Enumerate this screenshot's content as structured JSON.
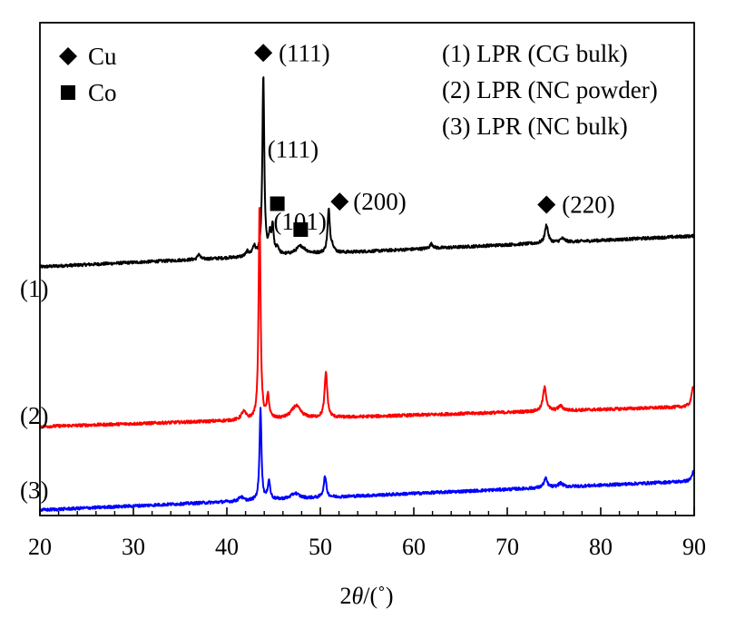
{
  "chart_data": {
    "type": "line",
    "xlabel_parts": [
      "2",
      "θ",
      "/(˚)"
    ],
    "x_ticks": [
      "20",
      "30",
      "40",
      "50",
      "60",
      "70",
      "80",
      "90"
    ],
    "xlim": [
      20,
      90
    ],
    "y_ticks_shown": false,
    "legend_markers": [
      {
        "symbol": "diamond",
        "label": "Cu"
      },
      {
        "symbol": "square",
        "label": "Co"
      }
    ],
    "legend_series": [
      "(1) LPR (CG bulk)",
      "(2) LPR (NC powder)",
      "(3) LPR (NC bulk)"
    ],
    "series": [
      {
        "label": "(1)",
        "color": "#000000",
        "baseline": [
          [
            20,
            55
          ],
          [
            90,
            89
          ]
        ],
        "peaks": [
          [
            37,
            6,
            0.15
          ],
          [
            42.2,
            5,
            0.2
          ],
          [
            42.9,
            10,
            0.2
          ],
          [
            43.9,
            200,
            0.12
          ],
          [
            44.6,
            20,
            0.15
          ],
          [
            44.9,
            30,
            0.12
          ],
          [
            45.4,
            8,
            0.2
          ],
          [
            47.9,
            9,
            0.6
          ],
          [
            50.9,
            47,
            0.15
          ],
          [
            51.3,
            6,
            0.2
          ],
          [
            61.9,
            5,
            0.2
          ],
          [
            74.2,
            20,
            0.2
          ],
          [
            75.9,
            4,
            0.3
          ]
        ]
      },
      {
        "label": "(2)",
        "color": "#ff0000",
        "baseline": [
          [
            20,
            11
          ],
          [
            90,
            33
          ]
        ],
        "peaks": [
          [
            41.8,
            9,
            0.3
          ],
          [
            43.5,
            237,
            0.12
          ],
          [
            44.4,
            25,
            0.15
          ],
          [
            47.4,
            14,
            0.6
          ],
          [
            50.6,
            50,
            0.17
          ],
          [
            74.0,
            26,
            0.22
          ],
          [
            75.7,
            5,
            0.3
          ],
          [
            89.9,
            23,
            0.2
          ]
        ]
      },
      {
        "label": "(3)",
        "color": "#0000ff",
        "baseline": [
          [
            20,
            2
          ],
          [
            90,
            34
          ]
        ],
        "peaks": [
          [
            41.5,
            5,
            0.25
          ],
          [
            43.6,
            102,
            0.12
          ],
          [
            44.5,
            21,
            0.15
          ],
          [
            47.3,
            6,
            0.5
          ],
          [
            50.5,
            23,
            0.17
          ],
          [
            74.1,
            10,
            0.22
          ],
          [
            75.7,
            4,
            0.3
          ],
          [
            89.9,
            10,
            0.2
          ]
        ]
      }
    ],
    "annotations": [
      {
        "symbol": "diamond",
        "text": "(111)",
        "x": 43.9,
        "series": 0
      },
      {
        "symbol": "square",
        "text": "(111)",
        "x": 45.4,
        "series": 0
      },
      {
        "symbol": "square",
        "text": "(101)",
        "x": 47.9,
        "series": 0
      },
      {
        "symbol": "diamond",
        "text": "(200)",
        "x": 51.0,
        "series": 0
      },
      {
        "symbol": "diamond",
        "text": "(220)",
        "x": 74.2,
        "series": 0
      }
    ]
  }
}
